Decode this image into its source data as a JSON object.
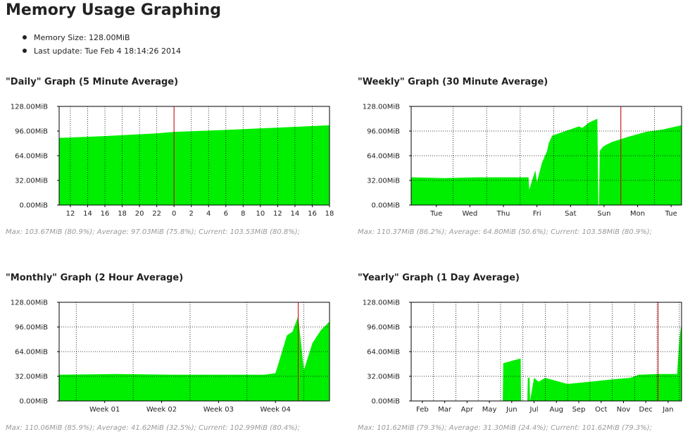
{
  "page": {
    "title": "Memory Usage Graphing",
    "info": [
      "Memory Size: 128.00MiB",
      "Last update: Tue Feb 4 18:14:26 2014"
    ]
  },
  "graphs": [
    {
      "title": "\"Daily\" Graph (5 Minute Average)",
      "summary": "Max: 103.67MiB (80.9%); Average: 97.03MiB (75.8%); Current: 103.53MiB (80.8%);"
    },
    {
      "title": "\"Weekly\" Graph (30 Minute Average)",
      "summary": "Max: 110.37MiB (86.2%); Average: 64.80MiB (50.6%); Current: 103.58MiB (80.9%);"
    },
    {
      "title": "\"Monthly\" Graph (2 Hour Average)",
      "summary": "Max: 110.06MiB (85.9%); Average: 41.62MiB (32.5%); Current: 102.99MiB (80.4%);"
    },
    {
      "title": "\"Yearly\" Graph (1 Day Average)",
      "summary": "Max: 101.62MiB (79.3%); Average: 31.30MiB (24.4%); Current: 101.62MiB (79.3%);"
    }
  ],
  "chart_data": [
    {
      "type": "area",
      "title": "\"Daily\" Graph (5 Minute Average)",
      "ylim": [
        0,
        128
      ],
      "y_ticks": [
        "0.00MiB",
        "32.00MiB",
        "64.00MiB",
        "96.00MiB",
        "128.00MiB"
      ],
      "x_ticks": [
        "12",
        "14",
        "16",
        "18",
        "20",
        "22",
        "0",
        "2",
        "4",
        "6",
        "8",
        "10",
        "12",
        "14",
        "16",
        "18"
      ],
      "x_range": [
        10.7,
        42.0
      ],
      "x_tick_values": [
        12,
        14,
        16,
        18,
        20,
        22,
        24,
        26,
        28,
        30,
        32,
        34,
        36,
        38,
        40,
        42
      ],
      "marker_x": 24,
      "grid": "vertical",
      "colors": {
        "fill": "#00ee00",
        "grid": "#000000",
        "marker": "#cc0000"
      },
      "series": [
        {
          "x": [
            10.7,
            16,
            22,
            24,
            30,
            36,
            42
          ],
          "y": [
            87,
            89.5,
            93,
            95,
            97.5,
            100.5,
            103.5
          ]
        }
      ]
    },
    {
      "type": "area",
      "title": "\"Weekly\" Graph (30 Minute Average)",
      "ylim": [
        0,
        128
      ],
      "y_ticks": [
        "0.00MiB",
        "32.00MiB",
        "64.00MiB",
        "96.00MiB",
        "128.00MiB"
      ],
      "x_ticks": [
        "Tue",
        "Wed",
        "Thu",
        "Fri",
        "Sat",
        "Sun",
        "Mon",
        "Tue"
      ],
      "x_range": [
        0,
        8.06
      ],
      "x_tick_values": [
        0.75,
        1.75,
        2.75,
        3.75,
        4.75,
        5.75,
        6.75,
        7.75
      ],
      "x_grid_values": [
        1.25,
        2.25,
        3.25,
        4.25,
        5.25,
        6.25,
        7.25
      ],
      "marker_x": 6.25,
      "grid": "both",
      "colors": {
        "fill": "#00ee00",
        "grid": "#000000",
        "marker": "#cc0000"
      },
      "series": [
        {
          "x": [
            0,
            1,
            2,
            3,
            3.5,
            3.52,
            3.7,
            3.75,
            3.9,
            4.05,
            4.1,
            4.2,
            5,
            5.1,
            5.3,
            5.55,
            5.58,
            5.6,
            5.62,
            5.7,
            5.8,
            6,
            6.5,
            7,
            7.5,
            8.06
          ],
          "y": [
            36,
            35,
            36,
            36,
            36,
            20,
            45,
            30,
            55,
            70,
            80,
            90,
            102,
            100,
            107,
            112,
            0,
            0,
            70,
            75,
            78,
            82,
            89,
            95,
            98,
            103.5
          ]
        }
      ]
    },
    {
      "type": "area",
      "title": "\"Monthly\" Graph (2 Hour Average)",
      "ylim": [
        0,
        128
      ],
      "y_ticks": [
        "0.00MiB",
        "32.00MiB",
        "64.00MiB",
        "96.00MiB",
        "128.00MiB"
      ],
      "x_ticks": [
        "Week 01",
        "Week 02",
        "Week 03",
        "Week 04"
      ],
      "x_range": [
        0,
        4.75
      ],
      "x_tick_values": [
        0.8,
        1.8,
        2.8,
        3.8
      ],
      "x_grid_values": [
        0.3,
        1.3,
        2.3,
        3.3,
        4.3
      ],
      "marker_x": 4.2,
      "grid": "both",
      "colors": {
        "fill": "#00ee00",
        "grid": "#000000",
        "marker": "#cc0000"
      },
      "series": [
        {
          "x": [
            0,
            1,
            2,
            3,
            3.6,
            3.8,
            3.9,
            4.0,
            4.1,
            4.2,
            4.3,
            4.45,
            4.6,
            4.75
          ],
          "y": [
            34,
            35,
            34,
            34,
            34,
            36,
            60,
            85,
            90,
            110,
            40,
            75,
            92,
            103
          ]
        }
      ]
    },
    {
      "type": "area",
      "title": "\"Yearly\" Graph (1 Day Average)",
      "ylim": [
        0,
        128
      ],
      "y_ticks": [
        "0.00MiB",
        "32.00MiB",
        "64.00MiB",
        "96.00MiB",
        "128.00MiB"
      ],
      "x_ticks": [
        "Feb",
        "Mar",
        "Apr",
        "May",
        "Jun",
        "Jul",
        "Aug",
        "Sep",
        "Oct",
        "Nov",
        "Dec",
        "Jan"
      ],
      "x_range": [
        1.0,
        13.1
      ],
      "x_tick_values": [
        1.5,
        2.5,
        3.5,
        4.5,
        5.5,
        6.5,
        7.5,
        8.5,
        9.5,
        10.5,
        11.5,
        12.5
      ],
      "x_grid_values": [
        2,
        3,
        4,
        5,
        6,
        7,
        8,
        9,
        10,
        11,
        12,
        13
      ],
      "marker_x": 12.05,
      "grid": "both",
      "colors": {
        "fill": "#00ee00",
        "grid": "#000000",
        "marker": "#cc0000"
      },
      "series": [
        {
          "x": [
            1,
            5.1,
            5.12,
            5.9,
            5.92,
            6.2,
            6.22,
            6.3,
            6.32,
            6.5,
            6.7,
            7.0,
            8,
            9,
            10,
            10.8,
            11.2,
            12,
            12.9,
            13.0,
            13.1
          ],
          "y": [
            0,
            0,
            49,
            55,
            0,
            0,
            30,
            30,
            0,
            30,
            25,
            30,
            22,
            25,
            28,
            30,
            34,
            35,
            35,
            80,
            101.6
          ]
        }
      ]
    }
  ]
}
